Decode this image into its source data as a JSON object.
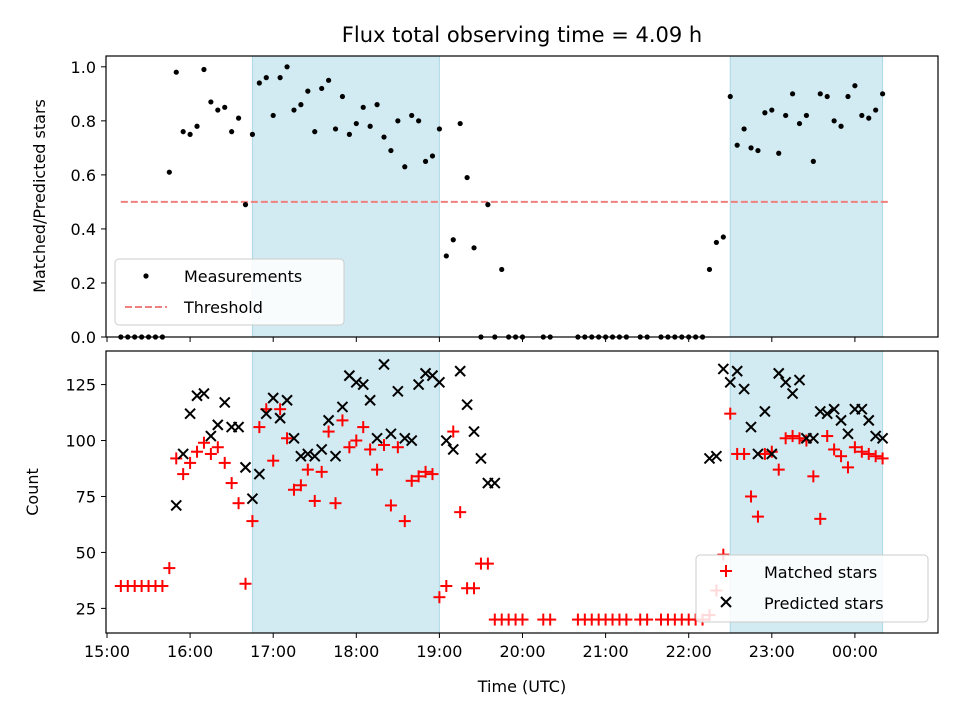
{
  "title": "Flux total observing time = 4.09 h",
  "xlabel": "Time (UTC)",
  "xticks": [
    "15:00",
    "16:00",
    "17:00",
    "18:00",
    "19:00",
    "20:00",
    "21:00",
    "22:00",
    "23:00",
    "00:00"
  ],
  "chart_data": [
    {
      "type": "scatter",
      "ylabel": "Matched/Predicted stars",
      "ylim": [
        0,
        1.04
      ],
      "yticks": [
        "0.0",
        "0.2",
        "0.4",
        "0.6",
        "0.8",
        "1.0"
      ],
      "shaded_regions": [
        [
          "16:45",
          "19:00"
        ],
        [
          "22:30",
          "00:20"
        ]
      ],
      "shade_color": "#add8e6",
      "legend_placement": "lower-left",
      "threshold": {
        "name": "Threshold",
        "value": 0.5,
        "x_range": [
          "15:10",
          "00:25"
        ],
        "color": "#f08080"
      },
      "series": [
        {
          "name": "Measurements",
          "color": "#000000",
          "marker": "dot",
          "x": [
            "15:10",
            "15:15",
            "15:20",
            "15:25",
            "15:30",
            "15:35",
            "15:40",
            "15:45",
            "15:50",
            "15:55",
            "16:00",
            "16:05",
            "16:10",
            "16:15",
            "16:20",
            "16:25",
            "16:30",
            "16:35",
            "16:40",
            "16:45",
            "16:50",
            "16:55",
            "17:00",
            "17:05",
            "17:10",
            "17:15",
            "17:20",
            "17:25",
            "17:30",
            "17:35",
            "17:40",
            "17:45",
            "17:50",
            "17:55",
            "18:00",
            "18:05",
            "18:10",
            "18:15",
            "18:20",
            "18:25",
            "18:30",
            "18:35",
            "18:40",
            "18:45",
            "18:50",
            "18:55",
            "19:00",
            "19:05",
            "19:10",
            "19:15",
            "19:20",
            "19:25",
            "19:30",
            "19:35",
            "19:40",
            "19:45",
            "19:50",
            "19:55",
            "20:00",
            "20:15",
            "20:20",
            "20:40",
            "20:45",
            "20:50",
            "20:55",
            "21:00",
            "21:05",
            "21:10",
            "21:15",
            "21:25",
            "21:30",
            "21:40",
            "21:45",
            "21:50",
            "21:55",
            "22:00",
            "22:05",
            "22:10",
            "22:15",
            "22:20",
            "22:25",
            "22:30",
            "22:35",
            "22:40",
            "22:45",
            "22:50",
            "22:55",
            "23:00",
            "23:05",
            "23:10",
            "23:15",
            "23:20",
            "23:25",
            "23:30",
            "23:35",
            "23:40",
            "23:45",
            "23:50",
            "23:55",
            "00:00",
            "00:05",
            "00:10",
            "00:15",
            "00:20"
          ],
          "y": [
            0,
            0,
            0,
            0,
            0,
            0,
            0,
            0.61,
            0.98,
            0.76,
            0.75,
            0.78,
            0.99,
            0.87,
            0.84,
            0.85,
            0.76,
            0.81,
            0.49,
            0.75,
            0.94,
            0.96,
            0.82,
            0.96,
            1.0,
            0.84,
            0.86,
            0.91,
            0.76,
            0.92,
            0.95,
            0.77,
            0.89,
            0.75,
            0.79,
            0.85,
            0.78,
            0.86,
            0.74,
            0.69,
            0.8,
            0.63,
            0.82,
            0.8,
            0.65,
            0.67,
            0.77,
            0.3,
            0.36,
            0.79,
            0.59,
            0.33,
            0,
            0.49,
            0,
            0.25,
            0,
            0,
            0,
            0,
            0,
            0,
            0,
            0,
            0,
            0,
            0,
            0,
            0,
            0,
            0,
            0,
            0,
            0,
            0,
            0,
            0,
            0,
            0.25,
            0.35,
            0.37,
            0.89,
            0.71,
            0.77,
            0.7,
            0.69,
            0.83,
            0.84,
            0.68,
            0.82,
            0.9,
            0.79,
            0.82,
            0.65,
            0.9,
            0.89,
            0.8,
            0.78,
            0.89,
            0.93,
            0.82,
            0.81,
            0.84,
            0.9
          ]
        }
      ]
    },
    {
      "type": "scatter",
      "ylabel": "Count",
      "ylim": [
        14,
        140
      ],
      "yticks": [
        "25",
        "50",
        "75",
        "100",
        "125"
      ],
      "shaded_regions": [
        [
          "16:45",
          "19:00"
        ],
        [
          "22:30",
          "00:20"
        ]
      ],
      "shade_color": "#add8e6",
      "legend_placement": "lower-right",
      "series": [
        {
          "name": "Matched stars",
          "color": "#ff0000",
          "marker": "plus",
          "x": [
            "15:10",
            "15:15",
            "15:20",
            "15:25",
            "15:30",
            "15:35",
            "15:40",
            "15:45",
            "15:50",
            "15:55",
            "16:00",
            "16:05",
            "16:10",
            "16:15",
            "16:20",
            "16:25",
            "16:30",
            "16:35",
            "16:40",
            "16:45",
            "16:50",
            "16:55",
            "17:00",
            "17:05",
            "17:10",
            "17:15",
            "17:20",
            "17:25",
            "17:30",
            "17:35",
            "17:40",
            "17:45",
            "17:50",
            "17:55",
            "18:00",
            "18:05",
            "18:10",
            "18:15",
            "18:20",
            "18:25",
            "18:30",
            "18:35",
            "18:40",
            "18:45",
            "18:50",
            "18:55",
            "19:00",
            "19:05",
            "19:10",
            "19:15",
            "19:20",
            "19:25",
            "19:30",
            "19:35",
            "19:40",
            "19:45",
            "19:50",
            "19:55",
            "20:00",
            "20:15",
            "20:20",
            "20:40",
            "20:45",
            "20:50",
            "20:55",
            "21:00",
            "21:05",
            "21:10",
            "21:15",
            "21:25",
            "21:30",
            "21:40",
            "21:45",
            "21:50",
            "21:55",
            "22:00",
            "22:05",
            "22:10",
            "22:15",
            "22:20",
            "22:25",
            "22:30",
            "22:35",
            "22:40",
            "22:45",
            "22:50",
            "22:55",
            "23:00",
            "23:05",
            "23:10",
            "23:15",
            "23:20",
            "23:25",
            "23:30",
            "23:35",
            "23:40",
            "23:45",
            "23:50",
            "23:55",
            "00:00",
            "00:05",
            "00:10",
            "00:15",
            "00:20"
          ],
          "y": [
            35,
            35,
            35,
            35,
            35,
            35,
            35,
            43,
            92,
            85,
            90,
            95,
            99,
            94,
            97,
            90,
            81,
            72,
            36,
            64,
            106,
            114,
            91,
            114,
            101,
            78,
            80,
            87,
            73,
            86,
            104,
            72,
            109,
            97,
            100,
            106,
            96,
            87,
            98,
            71,
            97,
            64,
            82,
            84,
            86,
            85,
            30,
            35,
            104,
            68,
            34,
            34,
            45,
            45,
            20,
            20,
            20,
            20,
            20,
            20,
            20,
            20,
            20,
            20,
            20,
            20,
            20,
            20,
            20,
            20,
            20,
            20,
            20,
            20,
            20,
            20,
            20,
            20,
            22,
            33,
            49,
            112,
            94,
            94,
            75,
            66,
            94,
            95,
            87,
            101,
            102,
            101,
            100,
            84,
            65,
            102,
            96,
            93,
            88,
            97,
            95,
            94,
            93,
            92
          ]
        },
        {
          "name": "Predicted stars",
          "color": "#000000",
          "marker": "x",
          "x": [
            "15:50",
            "15:55",
            "16:00",
            "16:05",
            "16:10",
            "16:15",
            "16:20",
            "16:25",
            "16:30",
            "16:35",
            "16:40",
            "16:45",
            "16:50",
            "16:55",
            "17:00",
            "17:05",
            "17:10",
            "17:15",
            "17:20",
            "17:25",
            "17:30",
            "17:35",
            "17:40",
            "17:45",
            "17:50",
            "17:55",
            "18:00",
            "18:05",
            "18:10",
            "18:15",
            "18:20",
            "18:25",
            "18:30",
            "18:35",
            "18:40",
            "18:45",
            "18:50",
            "18:55",
            "19:00",
            "19:05",
            "19:10",
            "19:15",
            "19:20",
            "19:25",
            "19:30",
            "19:35",
            "19:40",
            "22:15",
            "22:20",
            "22:25",
            "22:30",
            "22:35",
            "22:40",
            "22:45",
            "22:50",
            "22:55",
            "23:00",
            "23:05",
            "23:10",
            "23:15",
            "23:20",
            "23:25",
            "23:30",
            "23:35",
            "23:40",
            "23:45",
            "23:50",
            "23:55",
            "00:00",
            "00:05",
            "00:10",
            "00:15",
            "00:20"
          ],
          "y": [
            71,
            94,
            112,
            120,
            121,
            102,
            107,
            117,
            106,
            106,
            88,
            74,
            85,
            112,
            119,
            110,
            118,
            101,
            93,
            94,
            93,
            96,
            109,
            93,
            115,
            129,
            126,
            125,
            118,
            101,
            134,
            103,
            122,
            101,
            100,
            125,
            130,
            129,
            126,
            100,
            96,
            131,
            116,
            104,
            92,
            81,
            81,
            92,
            93,
            132,
            126,
            131,
            123,
            106,
            94,
            113,
            94,
            130,
            126,
            121,
            127,
            101,
            101,
            113,
            112,
            114,
            109,
            103,
            114,
            114,
            109,
            102,
            101
          ]
        }
      ]
    }
  ]
}
